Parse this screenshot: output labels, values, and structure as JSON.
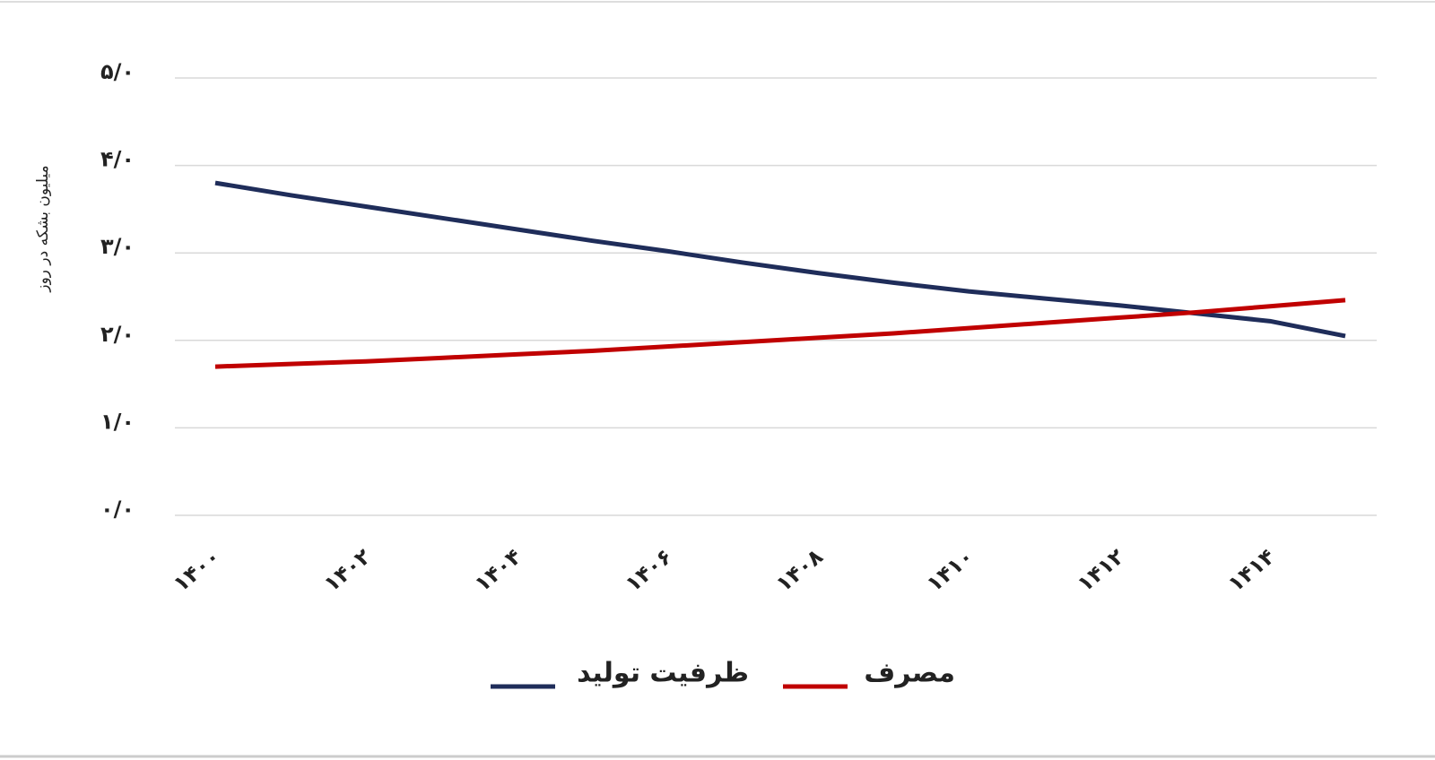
{
  "chart_data": {
    "type": "line",
    "y_label": "میلیون بشکه در روز",
    "categories": [
      "۱۴۰۰",
      null,
      "۱۴۰۲",
      null,
      "۱۴۰۴",
      null,
      "۱۴۰۶",
      null,
      "۱۴۰۸",
      null,
      "۱۴۱۰",
      null,
      "۱۴۱۲",
      null,
      "۱۴۱۴",
      null
    ],
    "series": [
      {
        "name": "ظرفیت تولید",
        "color": "#1f2d5a",
        "values": [
          3.8,
          3.66,
          3.53,
          3.4,
          3.27,
          3.14,
          3.02,
          2.89,
          2.77,
          2.66,
          2.56,
          2.48,
          2.4,
          2.31,
          2.22,
          2.05
        ]
      },
      {
        "name": "مصرف",
        "color": "#c00000",
        "values": [
          1.7,
          1.73,
          1.76,
          1.8,
          1.84,
          1.88,
          1.93,
          1.98,
          2.03,
          2.08,
          2.14,
          2.2,
          2.26,
          2.32,
          2.39,
          2.46
        ]
      }
    ],
    "ylim": [
      0,
      5
    ],
    "yticks": [
      {
        "value": 0,
        "label": "۰/۰"
      },
      {
        "value": 1,
        "label": "۱/۰"
      },
      {
        "value": 2,
        "label": "۲/۰"
      },
      {
        "value": 3,
        "label": "۳/۰"
      },
      {
        "value": 4,
        "label": "۴/۰"
      },
      {
        "value": 5,
        "label": "۵/۰"
      }
    ],
    "grid": true,
    "legend": "bottom"
  }
}
